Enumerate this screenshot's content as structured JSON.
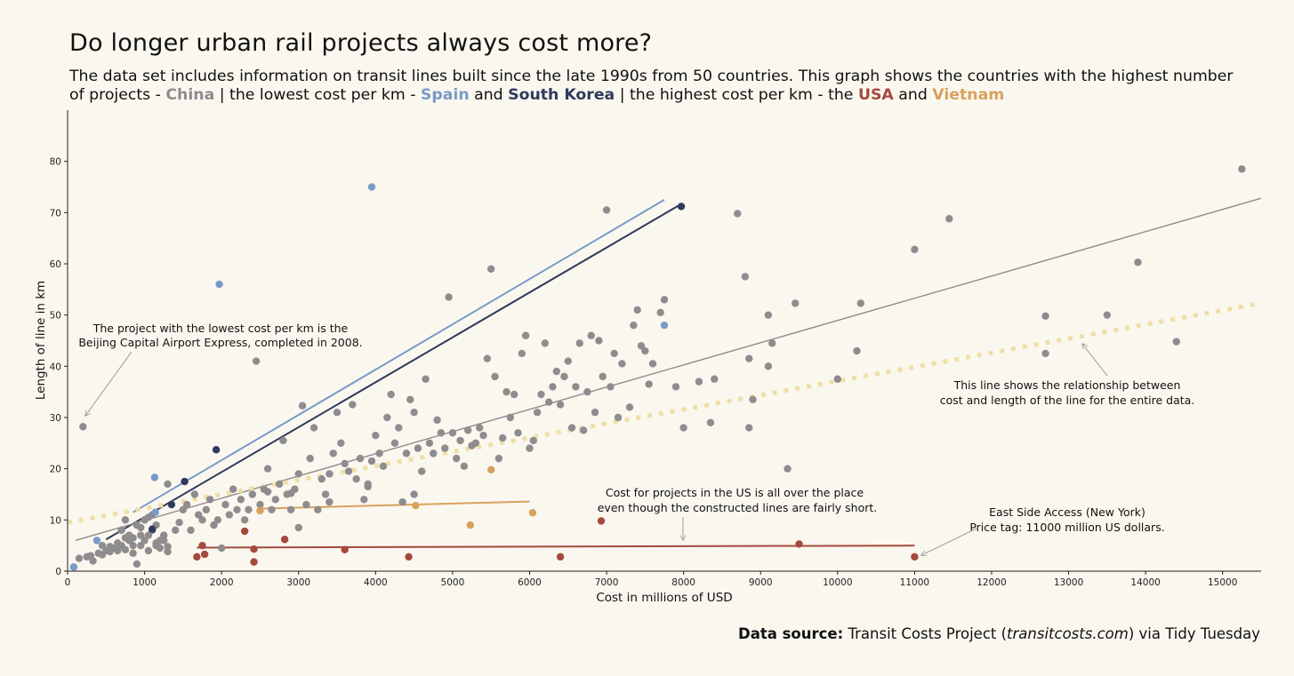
{
  "title": "Do longer urban rail projects always cost more?",
  "subtitle": {
    "p1": "The data set includes information on transit lines built since the late 1990s from 50 countries. This graph shows the countries with the highest number of projects - ",
    "china": "China",
    "p2": " | the lowest cost per km - ",
    "spain": "Spain",
    "p3": " and ",
    "korea": "South Korea",
    "p4": " | the highest cost per km - the ",
    "usa": "USA",
    "p5": " and ",
    "vietnam": "Vietnam"
  },
  "colors": {
    "background": "#faf7ef",
    "other": "#8e8c8e",
    "china": "#8e8c8e",
    "spain": "#779ac9",
    "south_korea": "#2f3a5c",
    "usa": "#a34a3c",
    "vietnam": "#d8a15c",
    "overall_fit": "#efdfa6"
  },
  "source": {
    "label": "Data source:",
    "text1": " Transit Costs Project (",
    "site": "transitcosts.com",
    "text2": ") via Tidy Tuesday"
  },
  "annotations": {
    "lowest": [
      "The project with the lowest cost per km is the",
      "Beijing Capital Airport Express, completed in 2008."
    ],
    "overall": [
      "This line shows the relationship between",
      "cost and length of the line for the entire data."
    ],
    "us": [
      "Cost for projects in the US is all over the place",
      "even though the constructed lines are fairly short."
    ],
    "esa": [
      "East Side Access (New York)",
      "Price tag: 11000 million US dollars."
    ]
  },
  "chart_data": {
    "type": "scatter",
    "xlabel": "Cost in millions of USD",
    "ylabel": "Length of line in km",
    "xlim": [
      0,
      15500
    ],
    "ylim": [
      0,
      90
    ],
    "xticks": [
      0,
      1000,
      2000,
      3000,
      4000,
      5000,
      6000,
      7000,
      8000,
      9000,
      10000,
      11000,
      12000,
      13000,
      14000,
      15000
    ],
    "yticks": [
      0,
      10,
      20,
      30,
      40,
      50,
      60,
      70,
      80
    ],
    "grid": false,
    "legend": "none (colour coded in subtitle)",
    "series": [
      {
        "name": "China",
        "color": "china",
        "points": [
          [
            200,
            28.2
          ],
          [
            150,
            2.5
          ],
          [
            250,
            2.8
          ],
          [
            300,
            3
          ],
          [
            330,
            2
          ],
          [
            400,
            3.5
          ],
          [
            450,
            3.2
          ],
          [
            500,
            4
          ],
          [
            550,
            3.8
          ],
          [
            600,
            4.5
          ],
          [
            650,
            4
          ],
          [
            700,
            5
          ],
          [
            750,
            4.2
          ],
          [
            800,
            6
          ],
          [
            850,
            3.5
          ],
          [
            900,
            1.4
          ],
          [
            950,
            5
          ],
          [
            1000,
            6
          ],
          [
            1050,
            7
          ],
          [
            1100,
            8
          ],
          [
            1150,
            5.5
          ],
          [
            1200,
            4.5
          ],
          [
            1250,
            6
          ],
          [
            1300,
            3.8
          ],
          [
            700,
            8
          ],
          [
            750,
            10
          ],
          [
            800,
            7
          ],
          [
            850,
            5
          ],
          [
            900,
            9
          ],
          [
            950,
            8.5
          ],
          [
            1000,
            10
          ],
          [
            1050,
            10.5
          ],
          [
            1100,
            11
          ],
          [
            1150,
            9
          ],
          [
            1200,
            6
          ],
          [
            1250,
            7
          ],
          [
            1300,
            17
          ],
          [
            1400,
            8
          ],
          [
            1450,
            9.5
          ],
          [
            1500,
            12
          ],
          [
            1550,
            13
          ],
          [
            1600,
            8
          ],
          [
            1650,
            15
          ],
          [
            1700,
            11
          ],
          [
            1750,
            10
          ],
          [
            1800,
            12
          ],
          [
            1850,
            14
          ],
          [
            1900,
            9
          ],
          [
            1950,
            10
          ],
          [
            2000,
            4.5
          ],
          [
            2050,
            13
          ],
          [
            2100,
            11
          ],
          [
            2150,
            16
          ],
          [
            2200,
            12
          ],
          [
            2250,
            14
          ],
          [
            2300,
            10
          ],
          [
            2350,
            12
          ],
          [
            2400,
            15
          ],
          [
            2450,
            41
          ],
          [
            2500,
            13
          ],
          [
            2550,
            16
          ],
          [
            2600,
            20
          ],
          [
            2650,
            12
          ],
          [
            2700,
            14
          ],
          [
            2750,
            17
          ],
          [
            2800,
            25.5
          ],
          [
            2850,
            15
          ],
          [
            2900,
            12
          ],
          [
            2950,
            16
          ],
          [
            3000,
            19
          ],
          [
            3050,
            32.3
          ],
          [
            3100,
            13
          ],
          [
            3150,
            22
          ],
          [
            3200,
            28
          ],
          [
            3250,
            12
          ],
          [
            3300,
            18
          ],
          [
            3350,
            15
          ],
          [
            3400,
            19
          ],
          [
            3450,
            23
          ],
          [
            3500,
            31
          ],
          [
            3550,
            25
          ],
          [
            3600,
            21
          ],
          [
            3650,
            19.5
          ],
          [
            3700,
            32.5
          ],
          [
            3750,
            18
          ],
          [
            3800,
            22
          ],
          [
            3850,
            14
          ],
          [
            3900,
            17
          ],
          [
            3950,
            21.5
          ],
          [
            4000,
            26.5
          ],
          [
            4050,
            23
          ],
          [
            4100,
            20.5
          ],
          [
            4150,
            30
          ],
          [
            4200,
            34.5
          ],
          [
            4250,
            25
          ],
          [
            4300,
            28
          ],
          [
            4350,
            13.5
          ],
          [
            4400,
            23
          ],
          [
            4450,
            33.5
          ],
          [
            4500,
            31
          ],
          [
            4550,
            24
          ],
          [
            4600,
            19.5
          ],
          [
            4650,
            37.5
          ],
          [
            4700,
            25
          ],
          [
            4750,
            23
          ],
          [
            4800,
            29.5
          ],
          [
            4850,
            27
          ],
          [
            4900,
            24
          ],
          [
            4950,
            53.5
          ],
          [
            5000,
            27
          ],
          [
            5050,
            22
          ],
          [
            5100,
            25.5
          ],
          [
            5150,
            20.5
          ],
          [
            5200,
            27.5
          ],
          [
            5250,
            24.5
          ],
          [
            5300,
            25
          ],
          [
            5350,
            28
          ],
          [
            5400,
            26.5
          ],
          [
            5450,
            41.5
          ],
          [
            5500,
            59
          ],
          [
            5550,
            38
          ],
          [
            5600,
            22
          ],
          [
            5650,
            26
          ],
          [
            5700,
            35
          ],
          [
            5750,
            30
          ],
          [
            5800,
            34.5
          ],
          [
            5850,
            27
          ],
          [
            5900,
            42.5
          ],
          [
            5950,
            46
          ],
          [
            6000,
            24
          ],
          [
            6050,
            25.5
          ],
          [
            6100,
            31
          ],
          [
            6150,
            34.5
          ],
          [
            6200,
            44.5
          ],
          [
            6250,
            33
          ],
          [
            6300,
            36
          ],
          [
            6350,
            39
          ],
          [
            6400,
            32.5
          ],
          [
            6450,
            38
          ],
          [
            6500,
            41
          ],
          [
            6550,
            28
          ],
          [
            6600,
            36
          ],
          [
            6650,
            44.5
          ],
          [
            6700,
            27.5
          ],
          [
            6750,
            35
          ],
          [
            6800,
            46
          ],
          [
            6850,
            31
          ],
          [
            6900,
            45
          ],
          [
            6950,
            38
          ],
          [
            7000,
            70.5
          ],
          [
            7050,
            36
          ],
          [
            7100,
            42.5
          ],
          [
            7150,
            30
          ],
          [
            7200,
            40.5
          ],
          [
            7300,
            32
          ],
          [
            7350,
            48
          ],
          [
            7400,
            51
          ],
          [
            7450,
            44
          ],
          [
            7500,
            43
          ],
          [
            7550,
            36.5
          ],
          [
            7600,
            40.5
          ],
          [
            7700,
            50.5
          ],
          [
            7750,
            53
          ],
          [
            7900,
            36
          ],
          [
            8000,
            28
          ],
          [
            8200,
            37
          ],
          [
            8350,
            29
          ],
          [
            8400,
            37.5
          ],
          [
            8700,
            69.8
          ],
          [
            8800,
            57.5
          ],
          [
            8850,
            41.5
          ],
          [
            8900,
            33.5
          ],
          [
            8850,
            28
          ],
          [
            9100,
            50
          ],
          [
            9100,
            40
          ],
          [
            9150,
            44.5
          ],
          [
            9350,
            20
          ],
          [
            9450,
            52.3
          ],
          [
            10000,
            37.5
          ],
          [
            10250,
            43
          ],
          [
            10300,
            52.3
          ],
          [
            11000,
            62.8
          ],
          [
            11450,
            68.8
          ],
          [
            12700,
            42.5
          ],
          [
            12700,
            49.8
          ],
          [
            13500,
            50
          ],
          [
            13900,
            60.3
          ],
          [
            14400,
            44.8
          ],
          [
            15250,
            78.5
          ],
          [
            450,
            5
          ],
          [
            550,
            4.8
          ],
          [
            650,
            5.5
          ],
          [
            750,
            6.5
          ],
          [
            850,
            6.5
          ],
          [
            950,
            7
          ],
          [
            1050,
            4
          ],
          [
            1150,
            5
          ],
          [
            3000,
            8.5
          ],
          [
            3400,
            13.5
          ],
          [
            3900,
            16.5
          ],
          [
            4500,
            15
          ],
          [
            2900,
            15.2
          ],
          [
            2600,
            15.5
          ],
          [
            1300,
            4.8
          ]
        ]
      },
      {
        "name": "Spain",
        "color": "spain",
        "points": [
          [
            80,
            0.8
          ],
          [
            380,
            6
          ],
          [
            1130,
            18.3
          ],
          [
            1140,
            11.5
          ],
          [
            1970,
            56
          ],
          [
            3950,
            75
          ],
          [
            7750,
            48
          ]
        ]
      },
      {
        "name": "South Korea",
        "color": "south_korea",
        "points": [
          [
            1100,
            8.2
          ],
          [
            1350,
            13
          ],
          [
            1520,
            17.5
          ],
          [
            1930,
            23.7
          ],
          [
            7970,
            71.2
          ]
        ]
      },
      {
        "name": "USA",
        "color": "usa",
        "points": [
          [
            1680,
            2.8
          ],
          [
            1750,
            5
          ],
          [
            1780,
            3.3
          ],
          [
            2300,
            7.8
          ],
          [
            2420,
            4.3
          ],
          [
            2420,
            1.8
          ],
          [
            2820,
            6.2
          ],
          [
            3600,
            4.2
          ],
          [
            4430,
            2.8
          ],
          [
            6400,
            2.8
          ],
          [
            6930,
            9.8
          ],
          [
            9500,
            5.3
          ],
          [
            11000,
            2.8
          ]
        ]
      },
      {
        "name": "Vietnam",
        "color": "vietnam",
        "points": [
          [
            2500,
            11.8
          ],
          [
            4520,
            12.8
          ],
          [
            5230,
            9
          ],
          [
            5500,
            19.8
          ],
          [
            6040,
            11.4
          ]
        ]
      }
    ],
    "fit_lines": [
      {
        "name": "Spain",
        "color": "spain",
        "x": [
          850,
          7750
        ],
        "y": [
          11.5,
          72.5
        ],
        "style": "solid"
      },
      {
        "name": "South Korea",
        "color": "south_korea",
        "x": [
          500,
          7950
        ],
        "y": [
          6.2,
          71.5
        ],
        "style": "solid"
      },
      {
        "name": "China",
        "color": "china",
        "x": [
          100,
          15500
        ],
        "y": [
          6,
          72.8
        ],
        "style": "solid"
      },
      {
        "name": "Vietnam",
        "color": "vietnam",
        "x": [
          2500,
          6000
        ],
        "y": [
          12.2,
          13.6
        ],
        "style": "solid"
      },
      {
        "name": "USA",
        "color": "usa",
        "x": [
          1680,
          11000
        ],
        "y": [
          4.6,
          5.0
        ],
        "style": "solid"
      },
      {
        "name": "All data",
        "color": "overall_fit",
        "x": [
          0,
          15500
        ],
        "y": [
          9.5,
          52.3
        ],
        "style": "dotted"
      }
    ]
  }
}
